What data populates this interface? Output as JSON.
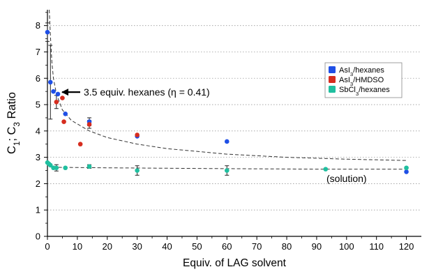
{
  "chart_data": {
    "type": "scatter",
    "xlabel": "Equiv. of LAG solvent",
    "ylabel": {
      "parts": [
        {
          "text": "C",
          "sub": false
        },
        {
          "text": "1",
          "sub": true
        },
        {
          "text": "; C",
          "sub": false
        },
        {
          "text": "3",
          "sub": true
        },
        {
          "text": " Ratio",
          "sub": false
        }
      ]
    },
    "xlim": [
      0,
      125
    ],
    "ylim": [
      0,
      8.6
    ],
    "xticks": [
      0,
      10,
      20,
      30,
      40,
      50,
      60,
      70,
      80,
      90,
      100,
      110,
      120
    ],
    "yticks": [
      0,
      1,
      2,
      3,
      4,
      5,
      6,
      7,
      8
    ],
    "grid": "horizontal dotted",
    "legend_position": "right",
    "series": [
      {
        "name": {
          "parts": [
            {
              "text": "AsI",
              "sub": false
            },
            {
              "text": "3",
              "sub": true
            },
            {
              "text": "/hexanes",
              "sub": false
            }
          ]
        },
        "color": "#1f4fe6",
        "points": [
          {
            "x": 0,
            "y": 7.75,
            "err": 0.35
          },
          {
            "x": 1,
            "y": 5.85,
            "err": 1.4
          },
          {
            "x": 2,
            "y": 5.5,
            "err": 0.0
          },
          {
            "x": 3.5,
            "y": 5.4,
            "err": 0.0
          },
          {
            "x": 6,
            "y": 4.65,
            "err": 0.0
          },
          {
            "x": 14,
            "y": 4.35,
            "err": 0.15
          },
          {
            "x": 30,
            "y": 3.8,
            "err": 0.0
          },
          {
            "x": 60,
            "y": 3.6,
            "err": 0.0
          },
          {
            "x": 120,
            "y": 2.45,
            "err": 0.0
          }
        ]
      },
      {
        "name": {
          "parts": [
            {
              "text": "AsI",
              "sub": false
            },
            {
              "text": "3",
              "sub": true
            },
            {
              "text": "/HMDSO",
              "sub": false
            }
          ]
        },
        "color": "#d62d1f",
        "points": [
          {
            "x": 3,
            "y": 5.1,
            "err": 0.25
          },
          {
            "x": 5,
            "y": 5.25,
            "err": 0.0
          },
          {
            "x": 5.5,
            "y": 4.35,
            "err": 0.0
          },
          {
            "x": 11,
            "y": 3.5,
            "err": 0.0
          },
          {
            "x": 14,
            "y": 4.25,
            "err": 0.15
          },
          {
            "x": 30,
            "y": 3.85,
            "err": 0.0
          }
        ]
      },
      {
        "name": {
          "parts": [
            {
              "text": "SbCl",
              "sub": false
            },
            {
              "text": "3",
              "sub": true
            },
            {
              "text": "/hexanes",
              "sub": false
            }
          ]
        },
        "color": "#1fbf9f",
        "points": [
          {
            "x": 0,
            "y": 2.8,
            "err": 0.0
          },
          {
            "x": 0.5,
            "y": 2.75,
            "err": 0.0
          },
          {
            "x": 1,
            "y": 2.7,
            "err": 0.0
          },
          {
            "x": 2,
            "y": 2.6,
            "err": 0.0
          },
          {
            "x": 3,
            "y": 2.6,
            "err": 0.12
          },
          {
            "x": 6,
            "y": 2.6,
            "err": 0.0
          },
          {
            "x": 14,
            "y": 2.65,
            "err": 0.07
          },
          {
            "x": 30,
            "y": 2.5,
            "err": 0.18
          },
          {
            "x": 60,
            "y": 2.5,
            "err": 0.18
          },
          {
            "x": 93,
            "y": 2.55,
            "err": 0.0
          },
          {
            "x": 120,
            "y": 2.6,
            "err": 0.0
          }
        ]
      }
    ],
    "fits": [
      {
        "series": 0,
        "points": [
          [
            0.6,
            8.6
          ],
          [
            1,
            7.6
          ],
          [
            1.5,
            6.6
          ],
          [
            2,
            6.0
          ],
          [
            3,
            5.4
          ],
          [
            5,
            4.8
          ],
          [
            8,
            4.4
          ],
          [
            14,
            4.0
          ],
          [
            20,
            3.75
          ],
          [
            30,
            3.5
          ],
          [
            40,
            3.33
          ],
          [
            60,
            3.12
          ],
          [
            80,
            3.0
          ],
          [
            100,
            2.93
          ],
          [
            120,
            2.88
          ]
        ]
      },
      {
        "series": 2,
        "points": [
          [
            0,
            2.7
          ],
          [
            3,
            2.62
          ],
          [
            20,
            2.6
          ],
          [
            60,
            2.57
          ],
          [
            90,
            2.55
          ],
          [
            120,
            2.55
          ]
        ]
      }
    ],
    "annotations": [
      {
        "text": "3.5 equiv. hexanes (η = 0.41)",
        "x": 3.5,
        "y": 5.5,
        "arrow": true
      },
      {
        "text": "(solution)",
        "x": 100,
        "y": 2.2,
        "arrow": false
      }
    ]
  }
}
